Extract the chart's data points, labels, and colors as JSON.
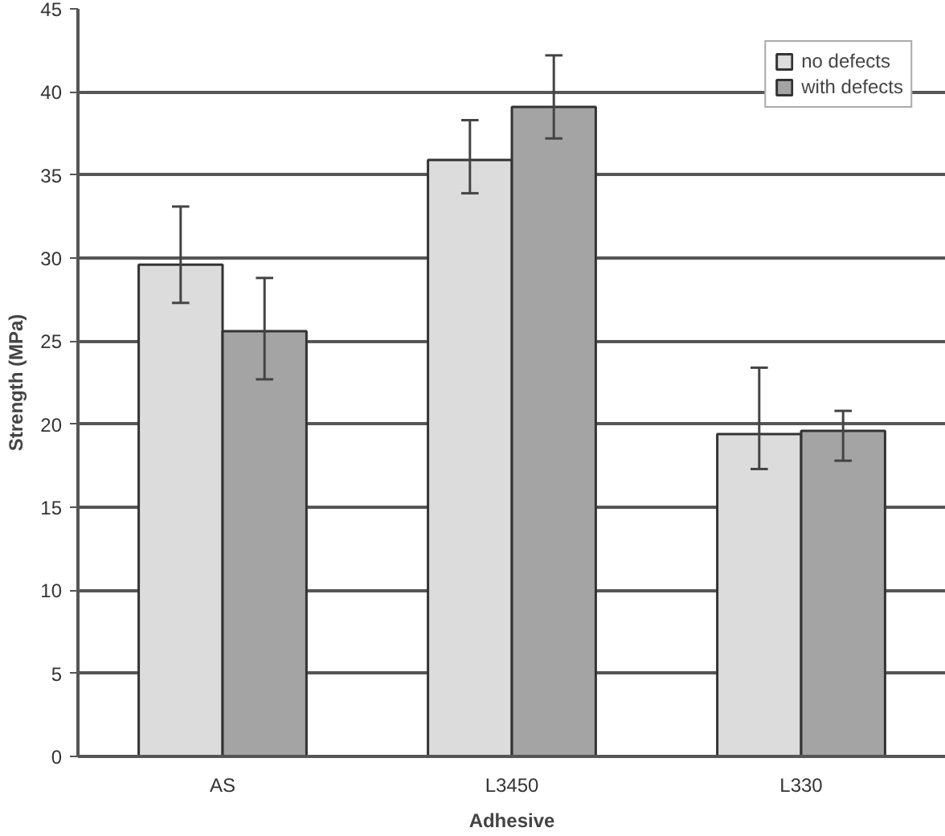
{
  "chart_data": {
    "type": "bar",
    "xlabel": "Adhesive",
    "ylabel": "Strength (MPa)",
    "categories": [
      "AS",
      "L3450",
      "L330"
    ],
    "series": [
      {
        "name": "no defects",
        "color": "#dcdcdc",
        "values": [
          29.6,
          35.9,
          19.4
        ],
        "errors": [
          [
            27.3,
            33.1
          ],
          [
            33.9,
            38.3
          ],
          [
            17.3,
            23.4
          ]
        ]
      },
      {
        "name": "with defects",
        "color": "#a4a4a4",
        "values": [
          25.6,
          39.1,
          19.6
        ],
        "errors": [
          [
            22.7,
            28.8
          ],
          [
            37.2,
            42.2
          ],
          [
            17.8,
            20.8
          ]
        ]
      }
    ],
    "ylim": [
      0,
      45
    ],
    "yticks": [
      0,
      5,
      10,
      15,
      20,
      25,
      30,
      35,
      40,
      45
    ],
    "grid": "y",
    "legend": "top right"
  }
}
